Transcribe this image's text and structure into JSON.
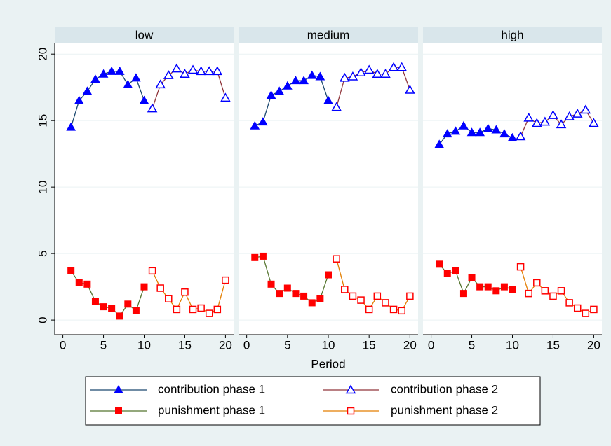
{
  "chart_data": [
    {
      "type": "line",
      "title": "low",
      "x_label": "Period",
      "x": [
        1,
        2,
        3,
        4,
        5,
        6,
        7,
        8,
        9,
        10,
        11,
        12,
        13,
        14,
        15,
        16,
        17,
        18,
        19,
        20
      ],
      "xlim": [
        -1,
        21
      ],
      "xticks": [
        0,
        5,
        10,
        15,
        20
      ],
      "ylim": [
        -1.1,
        20.8
      ],
      "yticks": [
        0,
        5,
        10,
        15,
        20
      ],
      "grid": true,
      "series": [
        {
          "name": "contribution phase 1",
          "color": "#1a476f",
          "marker_color": "#0000ff",
          "marker": "triangle",
          "filled": true,
          "values": [
            14.5,
            16.5,
            17.2,
            18.1,
            18.5,
            18.7,
            18.7,
            17.7,
            18.2,
            16.5,
            null,
            null,
            null,
            null,
            null,
            null,
            null,
            null,
            null,
            null
          ]
        },
        {
          "name": "contribution phase 2",
          "color": "#90353b",
          "marker_color": "#0000ff",
          "marker": "triangle",
          "filled": false,
          "values": [
            null,
            null,
            null,
            null,
            null,
            null,
            null,
            null,
            null,
            null,
            15.9,
            17.7,
            18.4,
            18.9,
            18.5,
            18.8,
            18.7,
            18.7,
            18.7,
            16.7
          ]
        },
        {
          "name": "punishment phase 1",
          "color": "#55752f",
          "marker_color": "#ff0000",
          "marker": "square",
          "filled": true,
          "values": [
            3.7,
            2.8,
            2.7,
            1.4,
            1.0,
            0.9,
            0.3,
            1.2,
            0.7,
            2.5,
            null,
            null,
            null,
            null,
            null,
            null,
            null,
            null,
            null,
            null
          ]
        },
        {
          "name": "punishment phase 2",
          "color": "#e37e00",
          "marker_color": "#ff0000",
          "marker": "square",
          "filled": false,
          "values": [
            null,
            null,
            null,
            null,
            null,
            null,
            null,
            null,
            null,
            null,
            3.7,
            2.4,
            1.6,
            0.8,
            2.1,
            0.8,
            0.9,
            0.5,
            0.8,
            3.0
          ]
        }
      ]
    },
    {
      "type": "line",
      "title": "medium",
      "x": [
        1,
        2,
        3,
        4,
        5,
        6,
        7,
        8,
        9,
        10,
        11,
        12,
        13,
        14,
        15,
        16,
        17,
        18,
        19,
        20
      ],
      "xlim": [
        -1,
        21
      ],
      "xticks": [
        0,
        5,
        10,
        15,
        20
      ],
      "ylim": [
        -1.1,
        20.8
      ],
      "yticks": [
        0,
        5,
        10,
        15,
        20
      ],
      "grid": true,
      "series": [
        {
          "name": "contribution phase 1",
          "color": "#1a476f",
          "marker_color": "#0000ff",
          "marker": "triangle",
          "filled": true,
          "values": [
            14.6,
            14.9,
            16.9,
            17.2,
            17.6,
            18.0,
            18.0,
            18.4,
            18.3,
            16.5,
            null,
            null,
            null,
            null,
            null,
            null,
            null,
            null,
            null,
            null
          ]
        },
        {
          "name": "contribution phase 2",
          "color": "#90353b",
          "marker_color": "#0000ff",
          "marker": "triangle",
          "filled": false,
          "values": [
            null,
            null,
            null,
            null,
            null,
            null,
            null,
            null,
            null,
            null,
            16.0,
            18.2,
            18.3,
            18.6,
            18.8,
            18.5,
            18.5,
            19.0,
            19.0,
            17.3
          ]
        },
        {
          "name": "punishment phase 1",
          "color": "#55752f",
          "marker_color": "#ff0000",
          "marker": "square",
          "filled": true,
          "values": [
            4.7,
            4.8,
            2.7,
            2.0,
            2.4,
            2.0,
            1.8,
            1.3,
            1.6,
            3.4,
            null,
            null,
            null,
            null,
            null,
            null,
            null,
            null,
            null,
            null
          ]
        },
        {
          "name": "punishment phase 2",
          "color": "#e37e00",
          "marker_color": "#ff0000",
          "marker": "square",
          "filled": false,
          "values": [
            null,
            null,
            null,
            null,
            null,
            null,
            null,
            null,
            null,
            null,
            4.6,
            2.3,
            1.8,
            1.5,
            0.8,
            1.8,
            1.3,
            0.8,
            0.7,
            1.8
          ]
        }
      ]
    },
    {
      "type": "line",
      "title": "high",
      "x": [
        1,
        2,
        3,
        4,
        5,
        6,
        7,
        8,
        9,
        10,
        11,
        12,
        13,
        14,
        15,
        16,
        17,
        18,
        19,
        20
      ],
      "xlim": [
        -1,
        21
      ],
      "xticks": [
        0,
        5,
        10,
        15,
        20
      ],
      "ylim": [
        -1.1,
        20.8
      ],
      "yticks": [
        0,
        5,
        10,
        15,
        20
      ],
      "grid": true,
      "series": [
        {
          "name": "contribution phase 1",
          "color": "#1a476f",
          "marker_color": "#0000ff",
          "marker": "triangle",
          "filled": true,
          "values": [
            13.2,
            14.0,
            14.2,
            14.6,
            14.1,
            14.1,
            14.4,
            14.3,
            14.0,
            13.7,
            null,
            null,
            null,
            null,
            null,
            null,
            null,
            null,
            null,
            null
          ]
        },
        {
          "name": "contribution phase 2",
          "color": "#90353b",
          "marker_color": "#0000ff",
          "marker": "triangle",
          "filled": false,
          "values": [
            null,
            null,
            null,
            null,
            null,
            null,
            null,
            null,
            null,
            null,
            13.8,
            15.2,
            14.8,
            14.9,
            15.4,
            14.7,
            15.3,
            15.5,
            15.8,
            14.8
          ]
        },
        {
          "name": "punishment phase 1",
          "color": "#55752f",
          "marker_color": "#ff0000",
          "marker": "square",
          "filled": true,
          "values": [
            4.2,
            3.5,
            3.7,
            2.0,
            3.2,
            2.5,
            2.5,
            2.2,
            2.5,
            2.3,
            null,
            null,
            null,
            null,
            null,
            null,
            null,
            null,
            null,
            null
          ]
        },
        {
          "name": "punishment phase 2",
          "color": "#e37e00",
          "marker_color": "#ff0000",
          "marker": "square",
          "filled": false,
          "values": [
            null,
            null,
            null,
            null,
            null,
            null,
            null,
            null,
            null,
            null,
            4.0,
            2.0,
            2.8,
            2.2,
            1.8,
            2.2,
            1.3,
            0.9,
            0.5,
            0.8
          ]
        }
      ]
    }
  ]
}
